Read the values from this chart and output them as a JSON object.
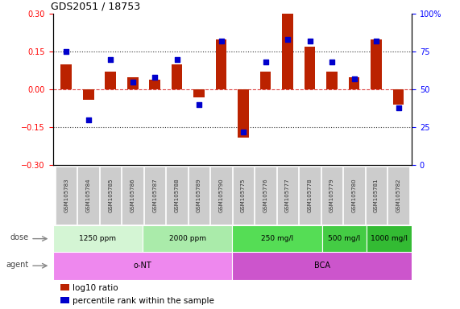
{
  "title": "GDS2051 / 18753",
  "samples": [
    "GSM105783",
    "GSM105784",
    "GSM105785",
    "GSM105786",
    "GSM105787",
    "GSM105788",
    "GSM105789",
    "GSM105790",
    "GSM105775",
    "GSM105776",
    "GSM105777",
    "GSM105778",
    "GSM105779",
    "GSM105780",
    "GSM105781",
    "GSM105782"
  ],
  "log10_ratio": [
    0.1,
    -0.04,
    0.07,
    0.05,
    0.04,
    0.1,
    -0.03,
    0.2,
    -0.19,
    0.07,
    0.3,
    0.17,
    0.07,
    0.05,
    0.2,
    -0.06
  ],
  "percentile_rank": [
    75,
    30,
    70,
    55,
    58,
    70,
    40,
    82,
    22,
    68,
    83,
    82,
    68,
    57,
    82,
    38
  ],
  "ylim_left": [
    -0.3,
    0.3
  ],
  "ylim_right": [
    0,
    100
  ],
  "yticks_left": [
    -0.3,
    -0.15,
    0.0,
    0.15,
    0.3
  ],
  "yticks_right": [
    0,
    25,
    50,
    75,
    100
  ],
  "hlines_dotted": [
    0.15,
    -0.15
  ],
  "hline_zero": 0.0,
  "dose_groups": [
    {
      "label": "1250 ppm",
      "start": 0,
      "end": 4,
      "color": "#d4f5d4"
    },
    {
      "label": "2000 ppm",
      "start": 4,
      "end": 8,
      "color": "#aaebaa"
    },
    {
      "label": "250 mg/l",
      "start": 8,
      "end": 12,
      "color": "#55dd55"
    },
    {
      "label": "500 mg/l",
      "start": 12,
      "end": 14,
      "color": "#44cc44"
    },
    {
      "label": "1000 mg/l",
      "start": 14,
      "end": 16,
      "color": "#33bb33"
    }
  ],
  "agent_groups": [
    {
      "label": "o-NT",
      "start": 0,
      "end": 8,
      "color": "#ee88ee"
    },
    {
      "label": "BCA",
      "start": 8,
      "end": 16,
      "color": "#cc55cc"
    }
  ],
  "bar_color": "#bb2200",
  "dot_color": "#0000cc",
  "legend_items": [
    {
      "color": "#bb2200",
      "label": "log10 ratio"
    },
    {
      "color": "#0000cc",
      "label": "percentile rank within the sample"
    }
  ],
  "dose_label": "dose",
  "agent_label": "agent",
  "sample_bg_color": "#cccccc",
  "sample_text_color": "#333333",
  "hline_dotted_color": "#333333",
  "zero_line_color": "#dd4444",
  "ax_bg_color": "#ffffff",
  "border_color": "#000000"
}
